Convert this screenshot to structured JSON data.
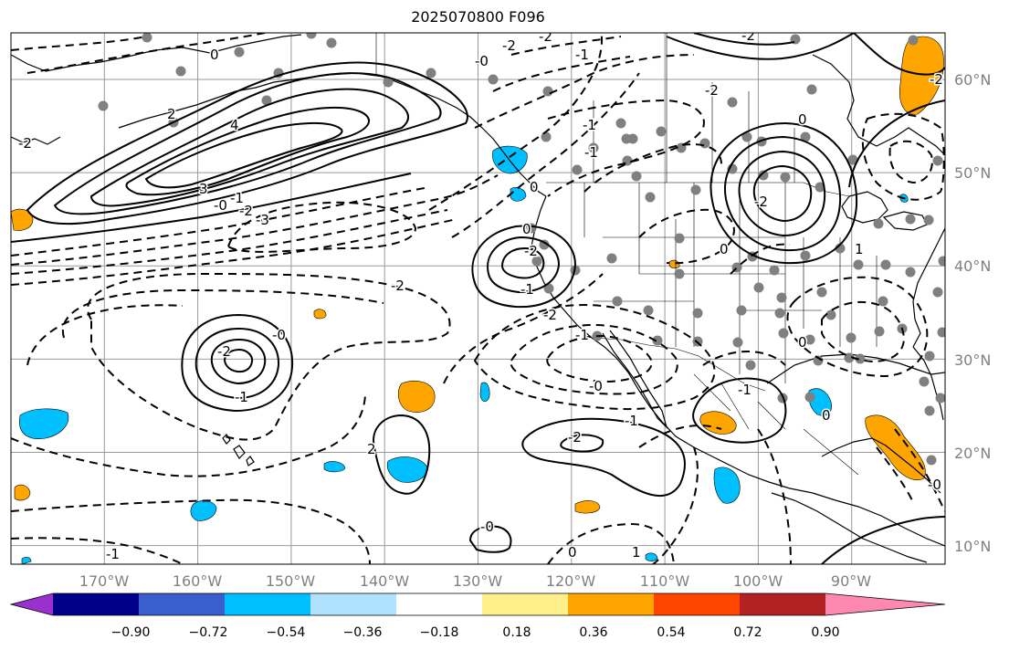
{
  "title": "2025070800 F096",
  "map": {
    "projection": "equirectangular",
    "lon_range": [
      -180,
      -80
    ],
    "lat_range": [
      8,
      65
    ],
    "grid": true,
    "latitude_labels": [
      "60°N",
      "50°N",
      "40°N",
      "30°N",
      "20°N",
      "10°N"
    ],
    "longitude_labels": [
      "170°W",
      "160°W",
      "150°W",
      "140°W",
      "130°W",
      "120°W",
      "110°W",
      "100°W",
      "90°W"
    ],
    "colors": {
      "grid": "#999999",
      "station": "#808080",
      "coast": "#000000",
      "contour": "#000000"
    }
  },
  "contour_labels": [
    "0",
    "-2",
    "-2",
    "-1",
    "-0",
    "2",
    "4",
    "-2",
    "3",
    "-0",
    "-1",
    "-2",
    "-3",
    "-2",
    "-0",
    "-2",
    "-1",
    "-2",
    "0",
    "-1",
    "0",
    "-2",
    "-1",
    "-2",
    "-1",
    "-0",
    "-1",
    "-2",
    "-1",
    "-2",
    "0",
    "-2",
    "-2",
    "-1",
    "2",
    "-0",
    "-1",
    "0",
    "1",
    "-0",
    "0",
    "0",
    "1",
    "0",
    "-1",
    "-1",
    "-1",
    "-0",
    "-0",
    "-1",
    "0",
    "0",
    "-2",
    "-2"
  ],
  "colorbar": {
    "ticks": [
      "−0.90",
      "−0.72",
      "−0.54",
      "−0.36",
      "−0.18",
      "0.18",
      "0.36",
      "0.54",
      "0.72",
      "0.90"
    ],
    "colors": [
      "#9b30d0",
      "#00008b",
      "#3a5fcd",
      "#00bfff",
      "#b0e2ff",
      "#ffffff",
      "#fff08c",
      "#ffa500",
      "#ff4500",
      "#b22222",
      "#ff88b0"
    ]
  }
}
